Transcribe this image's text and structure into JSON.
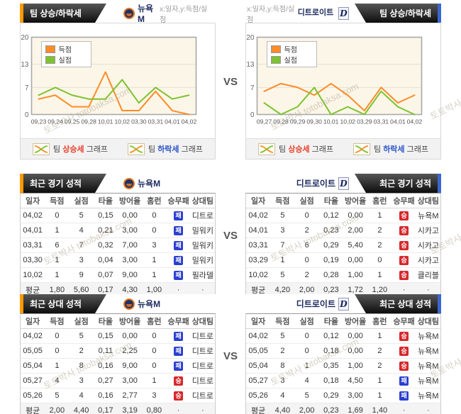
{
  "labels": {
    "trend_tab": "팀 상승/하락세",
    "axis_note": "x:일자,y:득점/실점",
    "vs": "VS",
    "legend_up": {
      "pre": "팀 ",
      "word": "상승세",
      "post": " 그래프"
    },
    "legend_down": {
      "pre": "팀 ",
      "word": "하락세",
      "post": " 그래프"
    }
  },
  "watermark": "토토박사 totobaksa.com",
  "teams": {
    "left": {
      "name": "뉴욕M"
    },
    "right": {
      "name": "디트로이트",
      "logo_letter": "D"
    }
  },
  "colors": {
    "score_line": "#FF8C28",
    "concede_line": "#7DC32D",
    "accent_left": "#FF9900",
    "accent_right": "#3A66D0",
    "win_badge": "#D6272B",
    "lose_badge": "#2B3FD0",
    "plot_bg": "#FBF6E8"
  },
  "chart_data": [
    {
      "type": "line",
      "title": "팀 상승/하락세 (뉴욕M)",
      "xlabel": "일자",
      "ylabel": "득점/실점",
      "ylim": [
        0,
        20
      ],
      "yticks": [
        0,
        7,
        13,
        20
      ],
      "grid": true,
      "legend_position": "top-left",
      "x": [
        "09,23",
        "09,24",
        "09,25",
        "09,28",
        "10,01",
        "10,02",
        "03,30",
        "03,31",
        "04,01",
        "04,02"
      ],
      "series": [
        {
          "name": "득점",
          "color": "#FF8C28",
          "values": [
            4,
            5,
            2,
            2,
            11,
            1,
            1,
            6,
            1,
            0
          ]
        },
        {
          "name": "실점",
          "color": "#7DC32D",
          "values": [
            5,
            7,
            5,
            4,
            4,
            9,
            3,
            7,
            4,
            5
          ]
        }
      ]
    },
    {
      "type": "line",
      "title": "팀 상승/하락세 (디트로이트)",
      "xlabel": "일자",
      "ylabel": "득점/실점",
      "ylim": [
        0,
        20
      ],
      "yticks": [
        0,
        7,
        13,
        20
      ],
      "grid": true,
      "legend_position": "top-left",
      "x": [
        "09,27",
        "09,28",
        "09,29",
        "09,30",
        "10,01",
        "10,02",
        "03,29",
        "03,31",
        "04,01",
        "04,02"
      ],
      "series": [
        {
          "name": "득점",
          "color": "#FF8C28",
          "values": [
            6,
            8,
            7,
            5,
            8,
            5,
            1,
            7,
            3,
            5
          ]
        },
        {
          "name": "실점",
          "color": "#7DC32D",
          "values": [
            3,
            0,
            2,
            7,
            0,
            2,
            0,
            6,
            2,
            0
          ]
        }
      ]
    }
  ],
  "tables": [
    {
      "title": "최근 경기 성적",
      "team": "뉴욕M",
      "columns": [
        "일자",
        "득점",
        "실점",
        "타율",
        "방어율",
        "홈런",
        "승무패",
        "상대팀"
      ],
      "rows": [
        [
          "04,02",
          "0",
          "5",
          "0,15",
          "0,00",
          "0",
          "패",
          "디트로"
        ],
        [
          "04,01",
          "1",
          "4",
          "0,21",
          "3,00",
          "0",
          "패",
          "밀워키"
        ],
        [
          "03,31",
          "6",
          "7",
          "0,32",
          "7,00",
          "3",
          "패",
          "밀워키"
        ],
        [
          "03,30",
          "1",
          "3",
          "0,04",
          "3,00",
          "1",
          "패",
          "밀워키"
        ],
        [
          "10,02",
          "1",
          "9",
          "0,07",
          "9,00",
          "1",
          "패",
          "필라델"
        ]
      ],
      "avg": [
        "평균",
        "1,80",
        "5,60",
        "0,17",
        "4,30",
        "1,00",
        "·",
        "·"
      ]
    },
    {
      "title": "최근 경기 성적",
      "team": "디트로이트",
      "columns": [
        "일자",
        "득점",
        "실점",
        "타율",
        "방어율",
        "홈런",
        "승무패",
        "상대팀"
      ],
      "rows": [
        [
          "04,02",
          "5",
          "0",
          "0,12",
          "0,00",
          "1",
          "승",
          "뉴욕M"
        ],
        [
          "04,01",
          "3",
          "2",
          "0,23",
          "2,00",
          "2",
          "승",
          "시카고"
        ],
        [
          "03,31",
          "7",
          "6",
          "0,29",
          "5,40",
          "2",
          "승",
          "시카고"
        ],
        [
          "03,29",
          "1",
          "0",
          "0,19",
          "0,00",
          "0",
          "승",
          "시카고"
        ],
        [
          "10,02",
          "5",
          "2",
          "0,28",
          "1,00",
          "1",
          "승",
          "클리블"
        ]
      ],
      "avg": [
        "평균",
        "4,20",
        "2,00",
        "0,23",
        "1,72",
        "1,20",
        "·",
        "·"
      ]
    },
    {
      "title": "최근 상대 성적",
      "team": "뉴욕M",
      "columns": [
        "일자",
        "득점",
        "실점",
        "타율",
        "방어율",
        "홈런",
        "승무패",
        "상대팀"
      ],
      "rows": [
        [
          "04,02",
          "0",
          "5",
          "0,15",
          "0,00",
          "0",
          "패",
          "디트로"
        ],
        [
          "05,05",
          "0",
          "2",
          "0,11",
          "2,25",
          "0",
          "패",
          "디트로"
        ],
        [
          "05,04",
          "1",
          "8",
          "0,16",
          "9,00",
          "0",
          "패",
          "디트로"
        ],
        [
          "05,27",
          "4",
          "3",
          "0,27",
          "3,00",
          "1",
          "승",
          "디트로"
        ],
        [
          "05,26",
          "5",
          "4",
          "0,16",
          "2,77",
          "3",
          "승",
          "디트로"
        ]
      ],
      "avg": [
        "평균",
        "2,00",
        "4,40",
        "0,17",
        "3,19",
        "0,80",
        "·",
        "·"
      ]
    },
    {
      "title": "최근 상대 성적",
      "team": "디트로이트",
      "columns": [
        "일자",
        "득점",
        "실점",
        "타율",
        "방어율",
        "홈런",
        "승무패",
        "상대팀"
      ],
      "rows": [
        [
          "04,02",
          "5",
          "0",
          "0,12",
          "0,00",
          "1",
          "승",
          "뉴욕M"
        ],
        [
          "05,05",
          "2",
          "0",
          "0,18",
          "0,00",
          "2",
          "승",
          "뉴욕M"
        ],
        [
          "05,04",
          "8",
          "1",
          "0,35",
          "1,00",
          "2",
          "승",
          "뉴욕M"
        ],
        [
          "05,27",
          "3",
          "4",
          "0,18",
          "4,50",
          "1",
          "패",
          "뉴욕M"
        ],
        [
          "05,26",
          "4",
          "5",
          "0,29",
          "3,00",
          "1",
          "패",
          "뉴욕M"
        ]
      ],
      "avg": [
        "평균",
        "4,40",
        "2,00",
        "0,23",
        "1,69",
        "1,40",
        "·",
        "·"
      ]
    }
  ]
}
